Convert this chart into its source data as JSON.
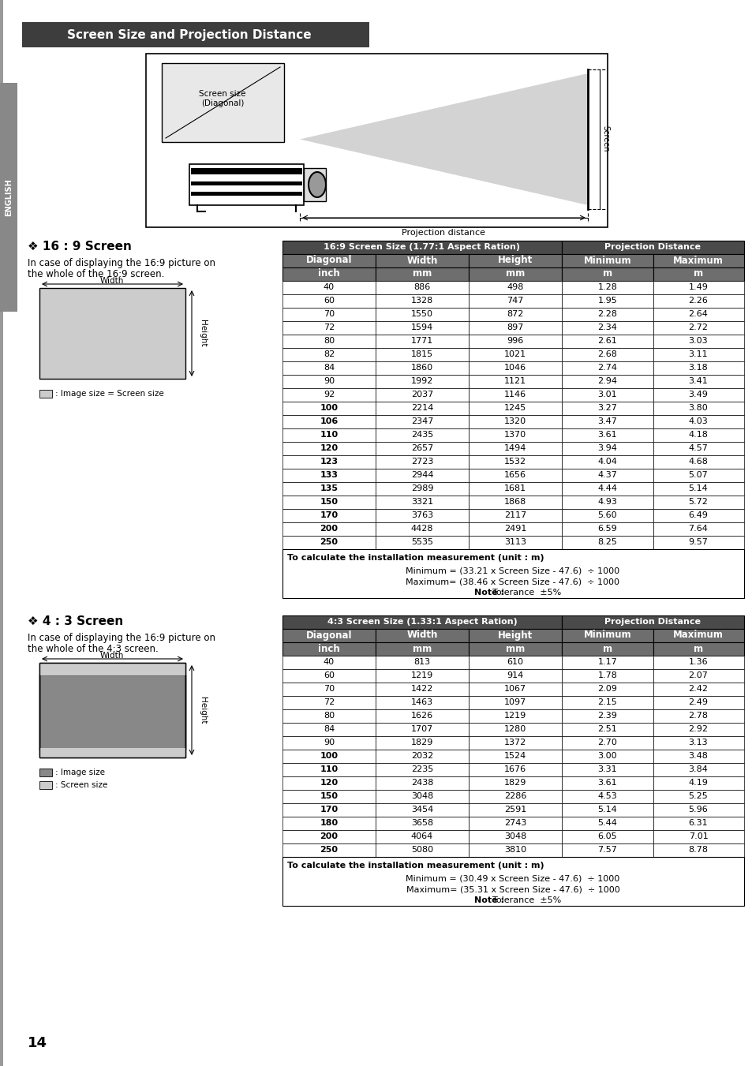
{
  "title": "Screen Size and Projection Distance",
  "section1_title": "❖ 16 : 9 Screen",
  "section1_desc1": "In case of displaying the 16:9 picture on",
  "section1_desc2": "the whole of the 16:9 screen.",
  "section1_legend": ": Image size = Screen size",
  "section2_title": "❖ 4 : 3 Screen",
  "section2_desc1": "In case of displaying the 16:9 picture on",
  "section2_desc2": "the whole of the 4:3 screen.",
  "section2_legend1": ": Image size",
  "section2_legend2": ": Screen size",
  "table1_header1": "16:9 Screen Size (1.77:1 Aspect Ration)",
  "table1_header2": "Projection Distance",
  "table1_cols": [
    "Diagonal",
    "Width",
    "Height",
    "Minimum",
    "Maximum"
  ],
  "table1_units": [
    "inch",
    "mm",
    "mm",
    "m",
    "m"
  ],
  "table1_data": [
    [
      "40",
      "886",
      "498",
      "1.28",
      "1.49"
    ],
    [
      "60",
      "1328",
      "747",
      "1.95",
      "2.26"
    ],
    [
      "70",
      "1550",
      "872",
      "2.28",
      "2.64"
    ],
    [
      "72",
      "1594",
      "897",
      "2.34",
      "2.72"
    ],
    [
      "80",
      "1771",
      "996",
      "2.61",
      "3.03"
    ],
    [
      "82",
      "1815",
      "1021",
      "2.68",
      "3.11"
    ],
    [
      "84",
      "1860",
      "1046",
      "2.74",
      "3.18"
    ],
    [
      "90",
      "1992",
      "1121",
      "2.94",
      "3.41"
    ],
    [
      "92",
      "2037",
      "1146",
      "3.01",
      "3.49"
    ],
    [
      "100",
      "2214",
      "1245",
      "3.27",
      "3.80"
    ],
    [
      "106",
      "2347",
      "1320",
      "3.47",
      "4.03"
    ],
    [
      "110",
      "2435",
      "1370",
      "3.61",
      "4.18"
    ],
    [
      "120",
      "2657",
      "1494",
      "3.94",
      "4.57"
    ],
    [
      "123",
      "2723",
      "1532",
      "4.04",
      "4.68"
    ],
    [
      "133",
      "2944",
      "1656",
      "4.37",
      "5.07"
    ],
    [
      "135",
      "2989",
      "1681",
      "4.44",
      "5.14"
    ],
    [
      "150",
      "3321",
      "1868",
      "4.93",
      "5.72"
    ],
    [
      "170",
      "3763",
      "2117",
      "5.60",
      "6.49"
    ],
    [
      "200",
      "4428",
      "2491",
      "6.59",
      "7.64"
    ],
    [
      "250",
      "5535",
      "3113",
      "8.25",
      "9.57"
    ]
  ],
  "table1_bold_rows": [
    9,
    10,
    11,
    12,
    13,
    14,
    15,
    16,
    17,
    18,
    19
  ],
  "table1_footnote1": "To calculate the installation measurement (unit : m)",
  "table1_footnote2": "Minimum = (33.21 x Screen Size - 47.6)  ÷ 1000",
  "table1_footnote3": "Maximum= (38.46 x Screen Size - 47.6)  ÷ 1000",
  "table1_footnote4": "Note : Tolerance  ±5%",
  "table2_header1": "4:3 Screen Size (1.33:1 Aspect Ration)",
  "table2_header2": "Projection Distance",
  "table2_cols": [
    "Diagonal",
    "Width",
    "Height",
    "Minimum",
    "Maximum"
  ],
  "table2_units": [
    "inch",
    "mm",
    "mm",
    "m",
    "m"
  ],
  "table2_data": [
    [
      "40",
      "813",
      "610",
      "1.17",
      "1.36"
    ],
    [
      "60",
      "1219",
      "914",
      "1.78",
      "2.07"
    ],
    [
      "70",
      "1422",
      "1067",
      "2.09",
      "2.42"
    ],
    [
      "72",
      "1463",
      "1097",
      "2.15",
      "2.49"
    ],
    [
      "80",
      "1626",
      "1219",
      "2.39",
      "2.78"
    ],
    [
      "84",
      "1707",
      "1280",
      "2.51",
      "2.92"
    ],
    [
      "90",
      "1829",
      "1372",
      "2.70",
      "3.13"
    ],
    [
      "100",
      "2032",
      "1524",
      "3.00",
      "3.48"
    ],
    [
      "110",
      "2235",
      "1676",
      "3.31",
      "3.84"
    ],
    [
      "120",
      "2438",
      "1829",
      "3.61",
      "4.19"
    ],
    [
      "150",
      "3048",
      "2286",
      "4.53",
      "5.25"
    ],
    [
      "170",
      "3454",
      "2591",
      "5.14",
      "5.96"
    ],
    [
      "180",
      "3658",
      "2743",
      "5.44",
      "6.31"
    ],
    [
      "200",
      "4064",
      "3048",
      "6.05",
      "7.01"
    ],
    [
      "250",
      "5080",
      "3810",
      "7.57",
      "8.78"
    ]
  ],
  "table2_bold_rows": [
    7,
    8,
    9,
    10,
    11,
    12,
    13,
    14
  ],
  "table2_footnote1": "To calculate the installation measurement (unit : m)",
  "table2_footnote2": "Minimum = (30.49 x Screen Size - 47.6)  ÷ 1000",
  "table2_footnote3": "Maximum= (35.31 x Screen Size - 47.6)  ÷ 1000",
  "table2_footnote4": "Note : Tolerance  ±5%",
  "bg_color": "#ffffff",
  "title_bg": "#3d3d3d",
  "title_fg": "#ffffff",
  "table_header_bg": "#4a4a4a",
  "table_header_fg": "#ffffff",
  "table_subheader_bg": "#6e6e6e",
  "table_subheader_fg": "#ffffff",
  "table_border": "#000000",
  "english_tab_bg": "#888888",
  "english_tab_fg": "#ffffff",
  "page_number": "14"
}
